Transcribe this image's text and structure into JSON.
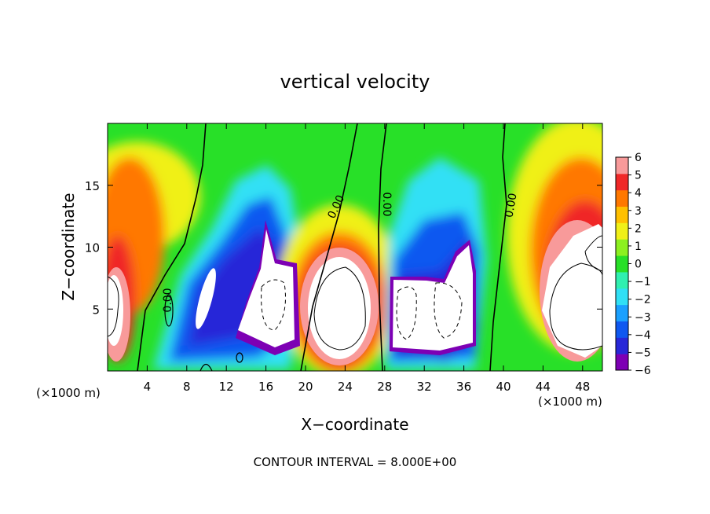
{
  "chart_data": {
    "type": "heatmap",
    "title": "vertical velocity",
    "xlabel": "X−coordinate",
    "ylabel": "Z−coordinate",
    "x_units": "(×1000 m)",
    "y_units": "(×1000 m)",
    "xlim": [
      0,
      50
    ],
    "ylim": [
      0,
      20
    ],
    "x_ticks": [
      4,
      8,
      12,
      16,
      20,
      24,
      28,
      32,
      36,
      40,
      44,
      48
    ],
    "y_ticks": [
      5,
      10,
      15
    ],
    "colorbar": {
      "min": -6,
      "max": 6,
      "ticks": [
        6,
        5,
        4,
        3,
        2,
        1,
        0,
        -1,
        -2,
        -3,
        -4,
        -5,
        -6
      ],
      "tick_labels": [
        "6",
        "5",
        "4",
        "3",
        "2",
        "1",
        "0",
        "−1",
        "−2",
        "−3",
        "−4",
        "−5",
        "−6"
      ],
      "colors": [
        "#7d00b4",
        "#2828d8",
        "#0f58f0",
        "#1aa0ff",
        "#30e0f5",
        "#30f0b0",
        "#28e028",
        "#8cf020",
        "#f0f018",
        "#ffc000",
        "#ff7800",
        "#f02828",
        "#f89a9a"
      ]
    },
    "contour_labels": [
      "0.00",
      "0.00",
      "0.00",
      "0.00"
    ],
    "contour_interval_text": "CONTOUR INTERVAL = 8.000E+00",
    "features": [
      {
        "kind": "updraft",
        "x": 2,
        "z": 6,
        "value": 5
      },
      {
        "kind": "downdraft",
        "x": 12,
        "z": 6,
        "value": -5
      },
      {
        "kind": "downdraft",
        "x": 16,
        "z": 7,
        "value": -6
      },
      {
        "kind": "updraft",
        "x": 24,
        "z": 5.5,
        "value": 6
      },
      {
        "kind": "downdraft",
        "x": 34,
        "z": 5.5,
        "value": -6
      },
      {
        "kind": "updraft",
        "x": 47,
        "z": 7,
        "value": 5
      }
    ]
  }
}
